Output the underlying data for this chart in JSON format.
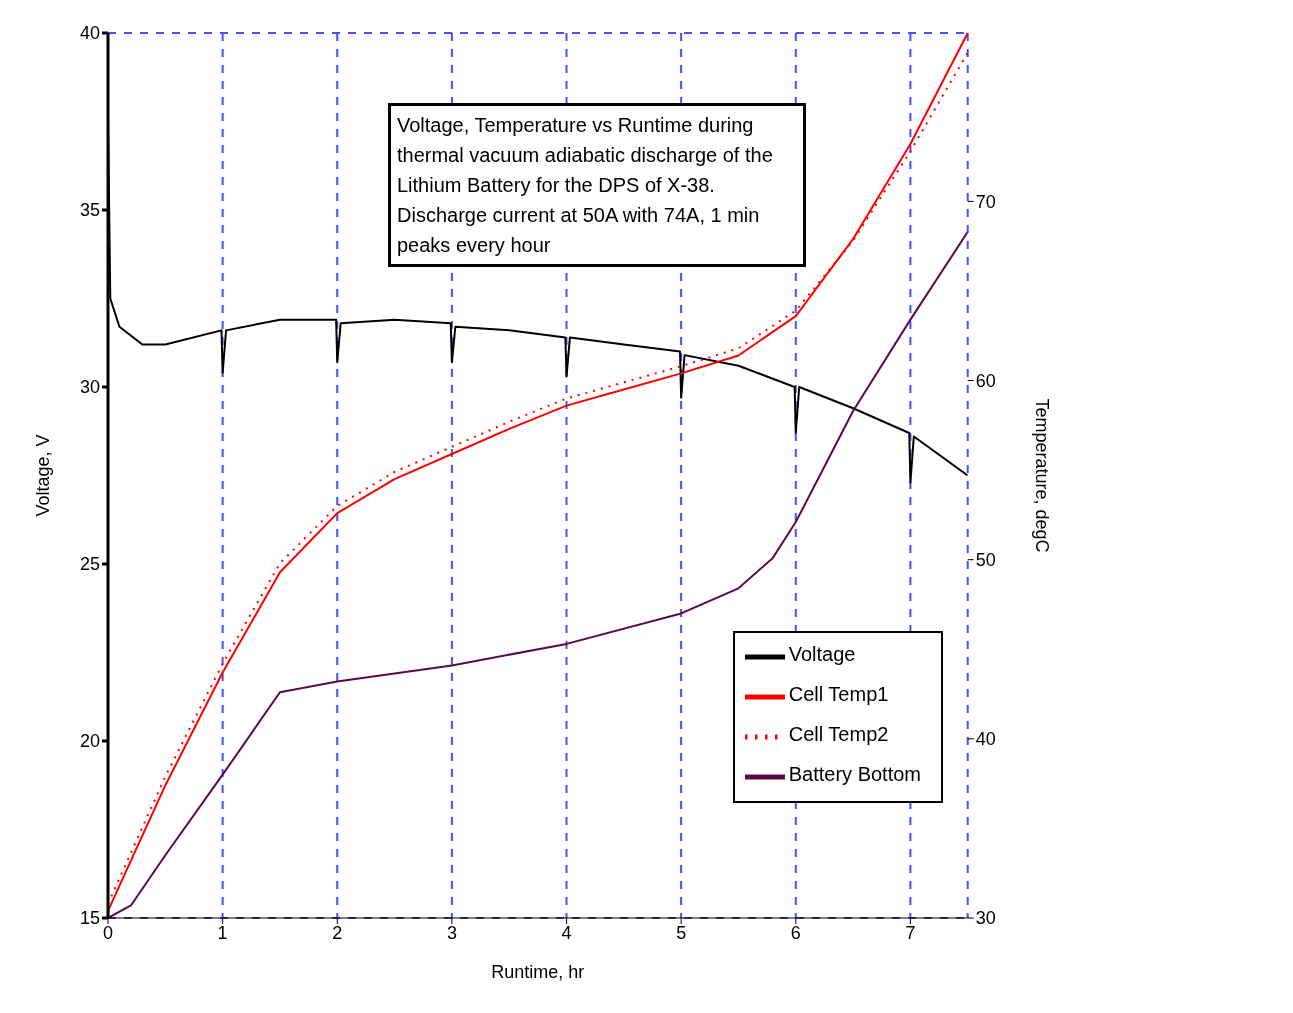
{
  "chart_data": {
    "type": "line",
    "title": "Voltage, Temperature vs Runtime during thermal vacuum adiabatic discharge of the Lithium Battery for the DPS of X-38. Discharge current at 50A with 74A, 1 min peaks every hour",
    "xlabel": "Runtime, hr",
    "ylabel": "Voltage, V",
    "y2label": "Temperature, degC",
    "xlim": [
      0,
      7.5
    ],
    "xticks": [
      0,
      1,
      2,
      3,
      4,
      5,
      6,
      7
    ],
    "ylim": [
      15,
      40
    ],
    "yticks": [
      15,
      20,
      25,
      30,
      35,
      40
    ],
    "y2lim": [
      30,
      79.4
    ],
    "y2ticks": [
      30,
      40,
      50,
      60,
      70
    ],
    "grid": true,
    "legend": "bottom right",
    "marker": "none",
    "series": [
      {
        "name": "Voltage",
        "color": "#000000",
        "line_style": "solid",
        "x": [
          0,
          0.02,
          0.1,
          0.3,
          0.5,
          0.99,
          1.0,
          1.03,
          1.5,
          1.99,
          2.0,
          2.03,
          2.5,
          2.99,
          3.0,
          3.03,
          3.5,
          3.99,
          4.0,
          4.03,
          4.5,
          4.99,
          5.0,
          5.03,
          5.5,
          5.99,
          6.0,
          6.03,
          6.5,
          6.99,
          7.0,
          7.03,
          7.5
        ],
        "values": [
          37.6,
          32.5,
          31.7,
          31.2,
          31.2,
          31.6,
          30.4,
          31.6,
          31.9,
          31.9,
          30.7,
          31.8,
          31.9,
          31.8,
          30.7,
          31.7,
          31.6,
          31.4,
          30.3,
          31.4,
          31.2,
          31.0,
          29.7,
          30.9,
          30.6,
          30.0,
          28.7,
          30.0,
          29.4,
          28.7,
          27.3,
          28.6,
          27.5
        ]
      },
      {
        "name": "Cell Temp1",
        "color": "#ff0000",
        "line_style": "solid",
        "axis": "y2",
        "x": [
          0,
          0.5,
          1,
          1.5,
          2,
          2.5,
          3,
          3.5,
          4,
          4.5,
          5,
          5.5,
          6,
          6.5,
          7,
          7.5
        ],
        "values": [
          30.4,
          37.4,
          43.7,
          49.3,
          52.6,
          54.5,
          55.9,
          57.3,
          58.6,
          59.5,
          60.4,
          61.4,
          63.6,
          67.9,
          73.2,
          79.4
        ]
      },
      {
        "name": "Cell Temp2",
        "color": "#ff0000",
        "line_style": "dotted",
        "axis": "y2",
        "x": [
          0,
          0.5,
          1,
          1.5,
          2,
          2.5,
          3,
          3.5,
          4,
          4.5,
          5,
          5.5,
          6,
          6.5,
          7,
          7.5
        ],
        "values": [
          30.8,
          37.9,
          44.2,
          49.8,
          53.0,
          54.9,
          56.3,
          57.7,
          59.0,
          59.9,
          60.8,
          61.8,
          63.9,
          67.8,
          72.8,
          78.3
        ]
      },
      {
        "name": "Battery Bottom",
        "color": "#5a0a46",
        "line_style": "solid",
        "axis": "y2",
        "x": [
          0,
          0.2,
          0.5,
          1,
          1.5,
          2,
          3,
          4,
          5,
          5.5,
          5.8,
          6,
          6.5,
          7,
          7.5
        ],
        "values": [
          30.0,
          30.7,
          33.5,
          38.0,
          42.6,
          43.2,
          44.1,
          45.3,
          47.0,
          48.4,
          50.1,
          52.1,
          58.3,
          63.4,
          68.3
        ]
      }
    ]
  }
}
